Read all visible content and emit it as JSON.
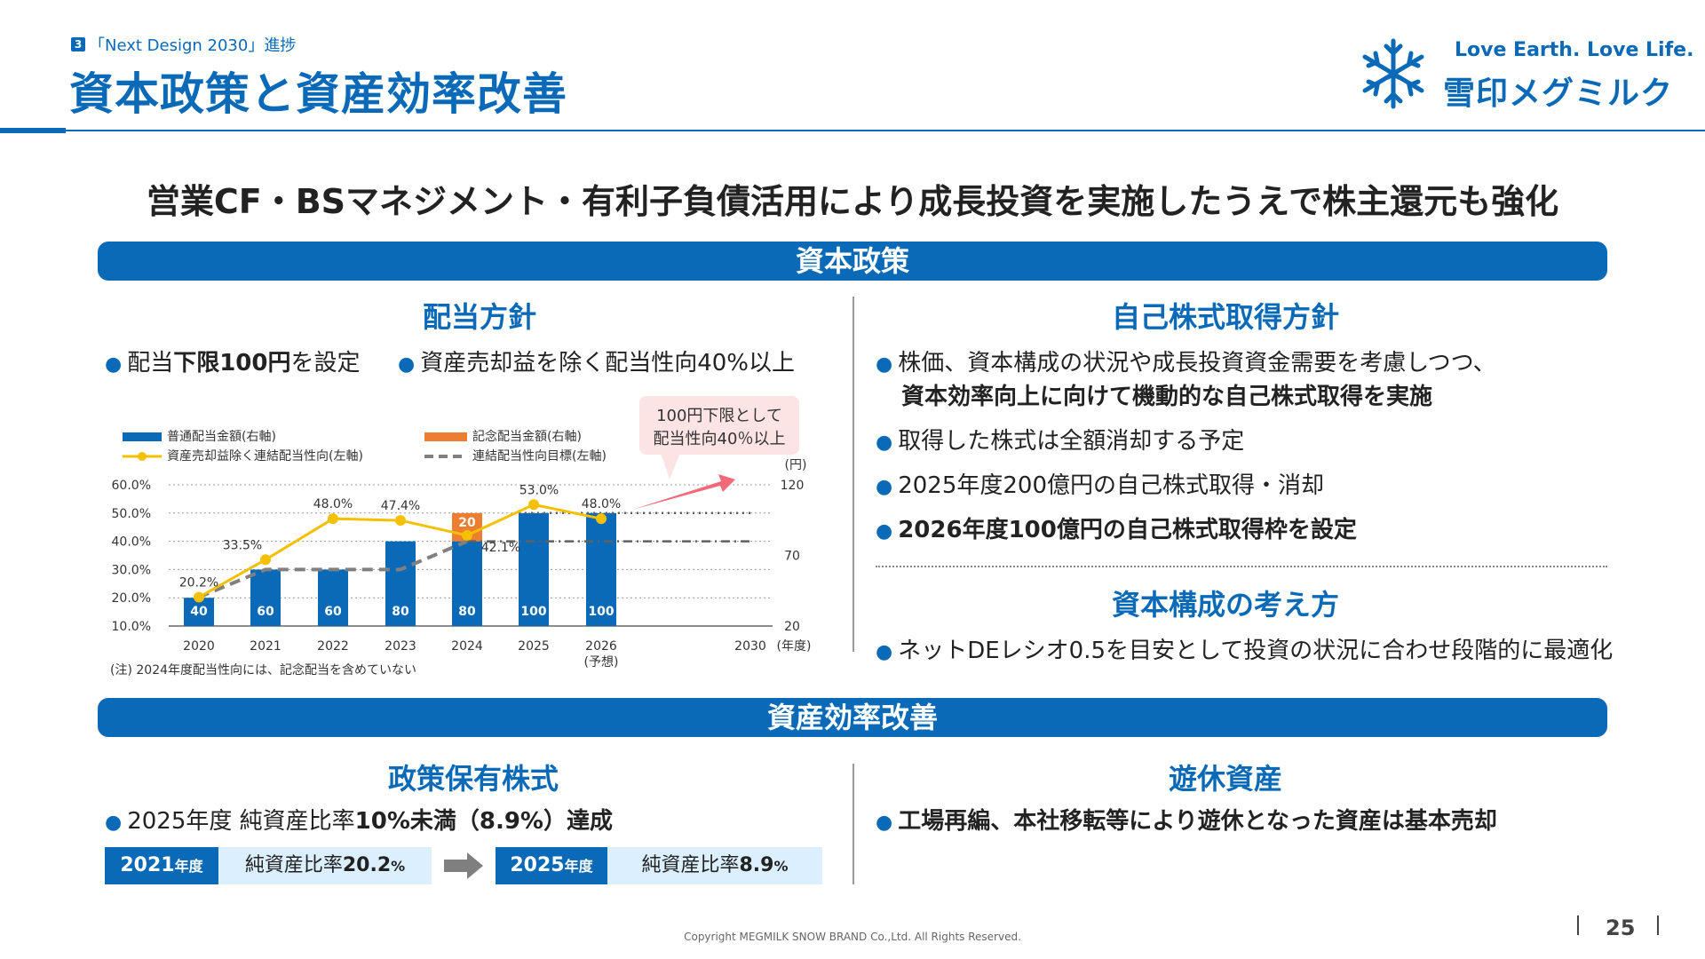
{
  "header": {
    "section_number": "3",
    "section_title": "「Next Design 2030」進捗",
    "title": "資本政策と資産効率改善",
    "slogan": "Love Earth. Love Life.",
    "brand": "雪印メグミルク"
  },
  "headline": "営業CF・BSマネジメント・有利子負債活用により成長投資を実施したうえで株主還元も強化",
  "capital_policy": {
    "banner": "資本政策",
    "dividend": {
      "heading": "配当方針",
      "bullet1_pre": "配当",
      "bullet1_bold": "下限100円",
      "bullet1_post": "を設定",
      "bullet2": "資産売却益を除く配当性向40%以上",
      "callout_line1": "100円下限として",
      "callout_line2": "配当性向40％以上",
      "note": "(注) 2024年度配当性向には、記念配当を含めていない"
    },
    "buyback": {
      "heading": "自己株式取得方針",
      "b1_line1": "株価、資本構成の状況や成長投資資金需要を考慮しつつ、",
      "b1_line2": "資本効率向上に向けて機動的な自己株式取得を実施",
      "b2": "取得した株式は全額消却する予定",
      "b3": "2025年度200億円の自己株式取得・消却",
      "b4": "2026年度100億円の自己株式取得枠を設定"
    },
    "structure": {
      "heading": "資本構成の考え方",
      "b1": "ネットDEレシオ0.5を目安として投資の状況に合わせ段階的に最適化"
    }
  },
  "asset_efficiency": {
    "banner": "資産効率改善",
    "policy_holdings": {
      "heading": "政策保有株式",
      "bullet_pre": "2025年度 純資産比率",
      "bullet_bold": "10%未満（8.9%）達成",
      "box1_year": "2021",
      "box1_suffix": "年度",
      "box1_label": "純資産比率",
      "box1_value": "20.2",
      "box1_unit": "%",
      "box2_year": "2025",
      "box2_suffix": "年度",
      "box2_label": "純資産比率",
      "box2_value": "8.9",
      "box2_unit": "%"
    },
    "idle_assets": {
      "heading": "遊休資産",
      "bullet": "工場再編、本社移転等により遊休となった資産は基本売却"
    }
  },
  "footer": {
    "copyright": "Copyright MEGMILK SNOW BRAND Co.,Ltd. All Rights Reserved.",
    "page": "25"
  },
  "colors": {
    "primary": "#0a6ab7",
    "commemorative": "#ed7d31",
    "payout_line": "#f5c000",
    "target_line": "#808080",
    "callout_bg": "#fde4e4",
    "arrow": "#f26a7a"
  },
  "chart_data": {
    "type": "bar",
    "categories": [
      "2020",
      "2021",
      "2022",
      "2023",
      "2024",
      "2025",
      "2026",
      "2030"
    ],
    "category_sublabels": [
      "",
      "",
      "",
      "",
      "",
      "",
      "(予想)",
      ""
    ],
    "x_unit_label": "(年度)",
    "legend": {
      "regular": "普通配当金額(右軸)",
      "commemorative": "記念配当金額(右軸)",
      "payout": "資産売却益除く連結配当性向(左軸)",
      "target": "連結配当性向目標(左軸)"
    },
    "series": [
      {
        "name": "普通配当金額(右軸)",
        "axis": "right",
        "kind": "bar",
        "values": [
          40,
          60,
          60,
          80,
          80,
          100,
          100,
          null
        ]
      },
      {
        "name": "記念配当金額(右軸)",
        "axis": "right",
        "kind": "stacked-bar",
        "values": [
          null,
          null,
          null,
          null,
          20,
          null,
          null,
          null
        ]
      },
      {
        "name": "資産売却益除く連結配当性向(左軸)",
        "axis": "left",
        "kind": "line",
        "values": [
          20.2,
          33.5,
          48.0,
          47.4,
          42.1,
          53.0,
          48.0,
          null
        ],
        "labels": [
          "20.2%",
          "33.5%",
          "48.0%",
          "47.4%",
          "42.1%",
          "53.0%",
          "48.0%",
          ""
        ]
      },
      {
        "name": "連結配当性向目標(左軸)",
        "axis": "left",
        "kind": "dashed-line",
        "values": [
          20.2,
          30,
          30,
          30,
          40,
          40,
          40,
          40
        ]
      }
    ],
    "left_axis": {
      "ylim": [
        10,
        60
      ],
      "ticks": [
        "10.0%",
        "20.0%",
        "30.0%",
        "40.0%",
        "50.0%",
        "60.0%"
      ]
    },
    "right_axis": {
      "unit": "(円)",
      "ylim": [
        20,
        120
      ],
      "ticks": [
        "20",
        "70",
        "120"
      ]
    },
    "reference_line_right": 100,
    "grid": true
  }
}
